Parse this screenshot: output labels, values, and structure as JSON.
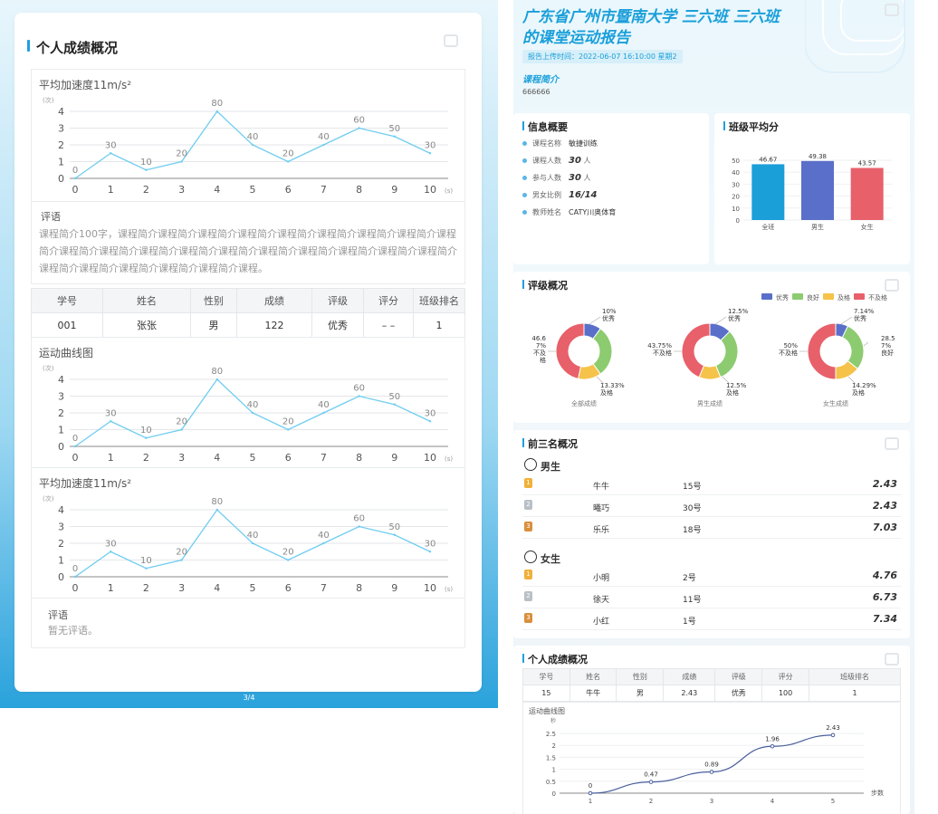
{
  "left": {
    "section_title": "个人成绩概况",
    "page_number": "3/4",
    "chart1": {
      "title": "平均加速度11m/s²",
      "unit_y": "(次)",
      "unit_x": "(s)"
    },
    "comment1": {
      "heading": "评语",
      "body": "课程简介100字，课程简介课程简介课程简介课程简介课程简介课程简介课程简介课程简介课程简介课程简介课程简介课程简介课程简介课程简介课程简介课程简介课程简介课程简介课程简介课程简介课程简介课程简介课程简介课程简介课程。"
    },
    "table": {
      "headers": [
        "学号",
        "姓名",
        "性别",
        "成绩",
        "评级",
        "评分",
        "班级排名"
      ],
      "row": [
        "001",
        "张张",
        "男",
        "122",
        "优秀",
        "– –",
        "1"
      ]
    },
    "chart2": {
      "title": "运动曲线图",
      "unit_y": "(次)",
      "unit_x": "(s)"
    },
    "chart3": {
      "title": "平均加速度11m/s²",
      "unit_y": "(次)",
      "unit_x": "(s)"
    },
    "comment2": {
      "heading": "评语",
      "body": "暂无评语。"
    }
  },
  "chart_data": [
    {
      "type": "line",
      "title": "平均加速度11m/s²",
      "ylabel": "(次)",
      "xlabel": "(s)",
      "x": [
        0,
        1,
        2,
        3,
        4,
        5,
        6,
        7,
        8,
        9,
        10
      ],
      "y_ticks": [
        0,
        1,
        2,
        3,
        4
      ],
      "ylim": [
        0,
        4
      ],
      "values": [
        0,
        1.5,
        0.5,
        1,
        4,
        2,
        1,
        2,
        3,
        2.5,
        1.5
      ],
      "labels": [
        "0",
        "30",
        "10",
        "20",
        "80",
        "40",
        "20",
        "40",
        "60",
        "50",
        "30"
      ]
    },
    {
      "type": "line",
      "title": "运动曲线图",
      "ylabel": "(次)",
      "xlabel": "(s)",
      "x": [
        0,
        1,
        2,
        3,
        4,
        5,
        6,
        7,
        8,
        9,
        10
      ],
      "y_ticks": [
        0,
        1,
        2,
        3,
        4
      ],
      "ylim": [
        0,
        4
      ],
      "values": [
        0,
        1.5,
        0.5,
        1,
        4,
        2,
        1,
        2,
        3,
        2.5,
        1.5
      ],
      "labels": [
        "0",
        "30",
        "10",
        "20",
        "80",
        "40",
        "20",
        "40",
        "60",
        "50",
        "30"
      ]
    },
    {
      "type": "line",
      "title": "平均加速度11m/s²",
      "ylabel": "(次)",
      "xlabel": "(s)",
      "x": [
        0,
        1,
        2,
        3,
        4,
        5,
        6,
        7,
        8,
        9,
        10
      ],
      "y_ticks": [
        0,
        1,
        2,
        3,
        4
      ],
      "ylim": [
        0,
        4
      ],
      "values": [
        0,
        1.5,
        0.5,
        1,
        4,
        2,
        1,
        2,
        3,
        2.5,
        1.5
      ],
      "labels": [
        "0",
        "30",
        "10",
        "20",
        "80",
        "40",
        "20",
        "40",
        "60",
        "50",
        "30"
      ]
    },
    {
      "type": "bar",
      "title": "班级平均分",
      "categories": [
        "全班",
        "男生",
        "女生"
      ],
      "values": [
        46.67,
        49.38,
        43.57
      ],
      "y_ticks": [
        0,
        10,
        20,
        30,
        40,
        50
      ],
      "ylim": [
        0,
        50
      ],
      "colors": [
        "#1a9fd9",
        "#5a6fc9",
        "#e8606a"
      ]
    },
    {
      "type": "pie",
      "title": "评级概况",
      "legend": [
        "优秀",
        "良好",
        "及格",
        "不及格"
      ],
      "colors": [
        "#5a6fc9",
        "#8ccb6f",
        "#f5c24a",
        "#e8606a"
      ],
      "donuts": [
        {
          "name": "全部成绩",
          "values": [
            10,
            30,
            13.33,
            46.67
          ]
        },
        {
          "name": "男生成绩",
          "values": [
            12.5,
            31.25,
            12.5,
            43.75
          ]
        },
        {
          "name": "女生成绩",
          "values": [
            7.14,
            28.57,
            14.29,
            50
          ]
        }
      ]
    },
    {
      "type": "line",
      "title": "运动曲线图",
      "ylabel": "秒",
      "xlabel": "步数",
      "x": [
        1,
        2,
        3,
        4,
        5
      ],
      "values": [
        0,
        0.47,
        0.89,
        1.96,
        2.43
      ],
      "labels": [
        "0",
        "0.47",
        "0.89",
        "1.96",
        "2.43"
      ],
      "y_ticks": [
        "0",
        "0.5",
        "1",
        "1.5",
        "2",
        "2.5"
      ],
      "ylim": [
        0,
        2.5
      ]
    }
  ],
  "right": {
    "title_line1": "广东省广州市暨南大学 三六班 三六班",
    "title_line2": "的课堂运动报告",
    "upload_time": "报告上传时间：2022-06-07 16:10:00 星期2",
    "course_heading": "课程简介",
    "course_text": "666666",
    "info": {
      "heading": "信息概要",
      "rows": [
        {
          "label": "课程名称",
          "value": "敏捷训练"
        },
        {
          "label": "课程人数",
          "value": "30",
          "unit": "人"
        },
        {
          "label": "参与人数",
          "value": "30",
          "unit": "人"
        },
        {
          "label": "男女比例",
          "value": "16/14"
        },
        {
          "label": "教师姓名",
          "value": "CATY川奥体育"
        }
      ]
    },
    "avg": {
      "heading": "班级平均分",
      "labels": [
        "46.67",
        "49.38",
        "43.57"
      ]
    },
    "rating": {
      "heading": "评级概况",
      "donut_labels": [
        {
          "a": "10%\n优秀",
          "b": "46.6\n7%\n不及\n格",
          "c": "13.33%\n及格"
        },
        {
          "a": "12.5%\n优秀",
          "b": "43.75%\n不及格",
          "c": "12.5%\n及格"
        },
        {
          "a": "7.14%\n优秀",
          "b": "50%\n不及格",
          "c": "14.29%\n及格",
          "d": "28.5\n7%\n良好"
        }
      ]
    },
    "top3": {
      "heading": "前三名概况",
      "male_label": "男生",
      "female_label": "女生",
      "male": [
        {
          "rank": "1",
          "name": "牛牛",
          "no": "15号",
          "score": "2.43"
        },
        {
          "rank": "2",
          "name": "曦巧",
          "no": "30号",
          "score": "2.43"
        },
        {
          "rank": "3",
          "name": "乐乐",
          "no": "18号",
          "score": "7.03"
        }
      ],
      "female": [
        {
          "rank": "1",
          "name": "小明",
          "no": "2号",
          "score": "4.76"
        },
        {
          "rank": "2",
          "name": "徐天",
          "no": "11号",
          "score": "6.73"
        },
        {
          "rank": "3",
          "name": "小红",
          "no": "1号",
          "score": "7.34"
        }
      ]
    },
    "personal": {
      "heading": "个人成绩概况",
      "headers": [
        "学号",
        "姓名",
        "性别",
        "成绩",
        "评级",
        "评分",
        "班级排名"
      ],
      "row": [
        "15",
        "牛牛",
        "男",
        "2.43",
        "优秀",
        "100",
        "1"
      ],
      "curve_title": "运动曲线图",
      "y_unit": "秒",
      "x_unit": "步数"
    }
  }
}
